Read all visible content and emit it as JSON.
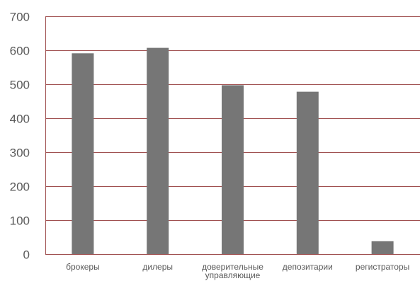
{
  "chart_data": {
    "type": "bar",
    "categories": [
      [
        "брокеры"
      ],
      [
        "дилеры"
      ],
      [
        "доверительные",
        "управляющие"
      ],
      [
        "депозитарии"
      ],
      [
        "регистраторы"
      ]
    ],
    "values": [
      591,
      607,
      497,
      478,
      38
    ],
    "ylim": [
      0,
      700
    ],
    "yticks": [
      0,
      100,
      200,
      300,
      400,
      500,
      600,
      700
    ],
    "grid": true,
    "legend": "none",
    "colors": {
      "bar": "#767676",
      "grid": "#a05050",
      "axis": "#a05050",
      "text": "#595959"
    }
  }
}
